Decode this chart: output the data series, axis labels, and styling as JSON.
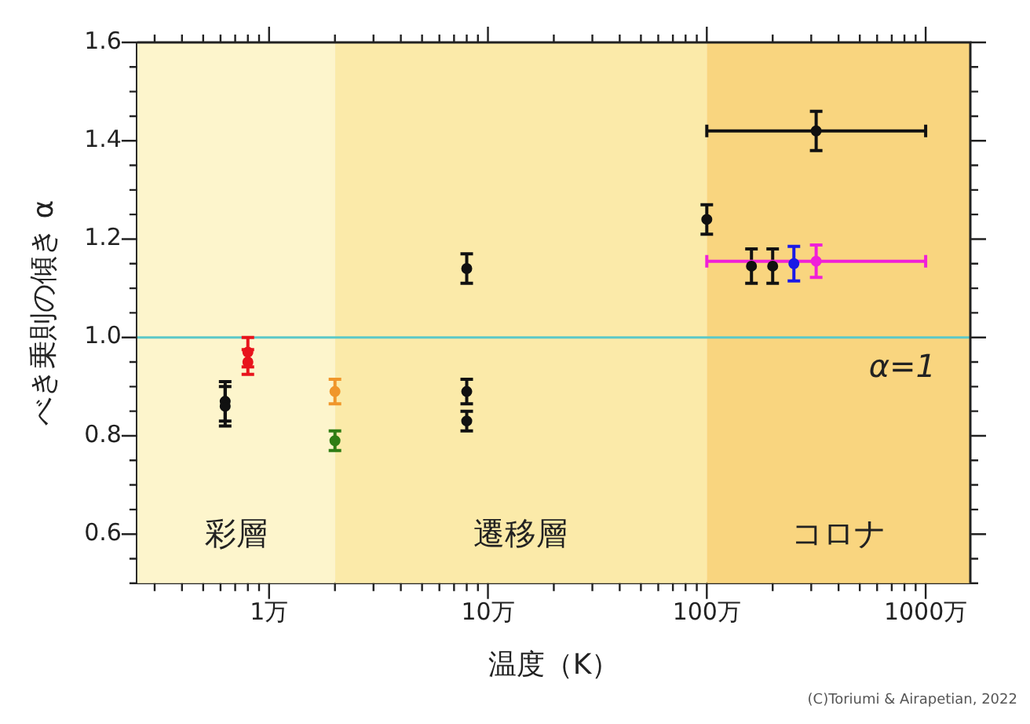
{
  "chart_data": {
    "type": "scatter",
    "xlabel": "温度（K）",
    "ylabel": "べき乗則の傾き α",
    "log": "x",
    "legend": false,
    "marker": "circle",
    "xlim": [
      0.25,
      1600
    ],
    "xticks": [
      {
        "value": 0.3,
        "label": null
      },
      {
        "value": 0.4,
        "label": null
      },
      {
        "value": 0.5,
        "label": null
      },
      {
        "value": 0.6,
        "label": null
      },
      {
        "value": 0.7,
        "label": null
      },
      {
        "value": 0.8,
        "label": null
      },
      {
        "value": 0.9,
        "label": null
      },
      {
        "value": 1,
        "label": "1万"
      },
      {
        "value": 2,
        "label": null
      },
      {
        "value": 3,
        "label": null
      },
      {
        "value": 4,
        "label": null
      },
      {
        "value": 5,
        "label": null
      },
      {
        "value": 6,
        "label": null
      },
      {
        "value": 7,
        "label": null
      },
      {
        "value": 8,
        "label": null
      },
      {
        "value": 9,
        "label": null
      },
      {
        "value": 10,
        "label": "10万"
      },
      {
        "value": 20,
        "label": null
      },
      {
        "value": 30,
        "label": null
      },
      {
        "value": 40,
        "label": null
      },
      {
        "value": 50,
        "label": null
      },
      {
        "value": 60,
        "label": null
      },
      {
        "value": 70,
        "label": null
      },
      {
        "value": 80,
        "label": null
      },
      {
        "value": 90,
        "label": null
      },
      {
        "value": 100,
        "label": "100万"
      },
      {
        "value": 200,
        "label": null
      },
      {
        "value": 300,
        "label": null
      },
      {
        "value": 400,
        "label": null
      },
      {
        "value": 500,
        "label": null
      },
      {
        "value": 600,
        "label": null
      },
      {
        "value": 700,
        "label": null
      },
      {
        "value": 800,
        "label": null
      },
      {
        "value": 900,
        "label": null
      },
      {
        "value": 1000,
        "label": "1000万"
      }
    ],
    "ylim": [
      0.5,
      1.6
    ],
    "yticks": [
      {
        "value": 0.5,
        "label": null
      },
      {
        "value": 0.55,
        "label": null
      },
      0.6,
      {
        "value": 0.65,
        "label": null
      },
      {
        "value": 0.7,
        "label": null
      },
      {
        "value": 0.75,
        "label": null
      },
      0.8,
      {
        "value": 0.85,
        "label": null
      },
      {
        "value": 0.9,
        "label": null
      },
      {
        "value": 0.95,
        "label": null
      },
      {
        "value": 1,
        "label": "1.0"
      },
      {
        "value": 1.05,
        "label": null
      },
      {
        "value": 1.1,
        "label": null
      },
      {
        "value": 1.15,
        "label": null
      },
      1.2,
      {
        "value": 1.25,
        "label": null
      },
      {
        "value": 1.3,
        "label": null
      },
      {
        "value": 1.35,
        "label": null
      },
      1.4,
      {
        "value": 1.45,
        "label": null
      },
      {
        "value": 1.5,
        "label": null
      },
      {
        "value": 1.55,
        "label": null
      },
      1.6
    ],
    "series": [
      {
        "color": "#111111",
        "x": [
          0.63,
          0.63,
          8,
          8,
          8,
          100,
          160,
          200,
          316
        ],
        "values": [
          0.87,
          0.86,
          1.14,
          0.89,
          0.83,
          1.24,
          1.145,
          1.145,
          1.42
        ],
        "errors": [
          0.04,
          0.04,
          0.03,
          0.025,
          0.02,
          0.03,
          0.035,
          0.035,
          0.04
        ],
        "xerrors": [
          null,
          null,
          null,
          null,
          null,
          null,
          null,
          null,
          [
            100,
            1000
          ]
        ]
      },
      {
        "color": "#e8141c",
        "x": [
          0.8,
          0.8
        ],
        "values": [
          0.97,
          0.95
        ],
        "errors": [
          0.03,
          0.025
        ]
      },
      {
        "color": "#f0962a",
        "x": [
          2
        ],
        "values": [
          0.89
        ],
        "errors": [
          0.025
        ]
      },
      {
        "color": "#2f7d14",
        "x": [
          2
        ],
        "values": [
          0.79
        ],
        "errors": [
          0.02
        ]
      },
      {
        "color": "#1a1ae6",
        "x": [
          250
        ],
        "values": [
          1.15
        ],
        "errors": [
          0.035
        ]
      },
      {
        "color": "#f020d8",
        "x": [
          316
        ],
        "values": [
          1.155
        ],
        "errors": [
          0.033
        ],
        "xerrors": [
          [
            100,
            1000
          ]
        ]
      }
    ],
    "bands": [
      {
        "axis": "x",
        "from": 0.25,
        "to": 2,
        "label": "彩層",
        "color": "#fdf5cc"
      },
      {
        "axis": "x",
        "from": 2,
        "to": 100,
        "label": "遷移層",
        "color": "#fbeaa9"
      },
      {
        "axis": "x",
        "from": 100,
        "to": 1600,
        "label": "コロナ",
        "color": "#f9d57f"
      }
    ],
    "ref_lines": [
      {
        "axis": "y",
        "value": 1,
        "label": "α=1",
        "color": "#5cc8c8"
      }
    ],
    "annotations": [
      "(C)Toriumi & Airapetian, 2022"
    ]
  }
}
